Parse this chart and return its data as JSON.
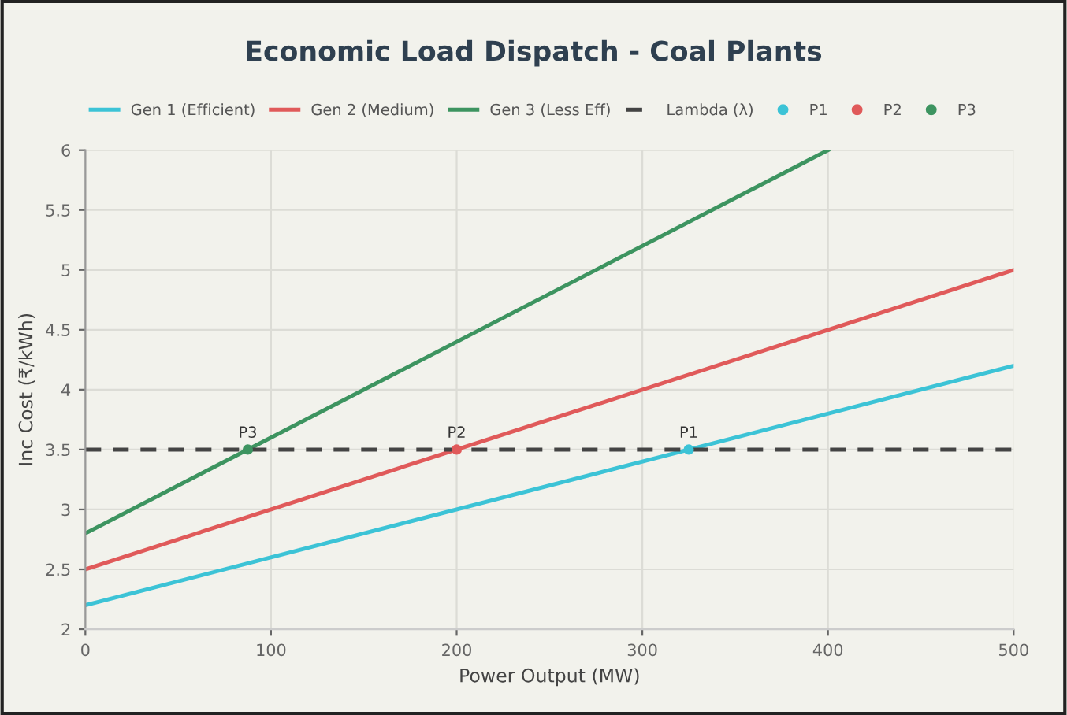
{
  "chart_data": {
    "type": "line",
    "title": "Economic Load Dispatch - Coal Plants",
    "xlabel": "Power Output (MW)",
    "ylabel": "Inc Cost (₹/kWh)",
    "series": [
      {
        "name": "Gen 1 (Efficient)",
        "color": "#3cc3d6",
        "x": [
          0,
          500
        ],
        "values": [
          2.2,
          4.2
        ]
      },
      {
        "name": "Gen 2 (Medium)",
        "color": "#e05a5a",
        "x": [
          0,
          500
        ],
        "values": [
          2.5,
          5
        ]
      },
      {
        "name": "Gen 3 (Less Eff)",
        "color": "#3d9460",
        "x": [
          0,
          400
        ],
        "values": [
          2.8,
          6
        ]
      },
      {
        "name": "Lambda (λ)",
        "color": "#444444",
        "x": [
          0,
          500
        ],
        "values": [
          3.5,
          3.5
        ],
        "line_style": "dashed"
      },
      {
        "name": "P1",
        "type": "scatter",
        "marker": "circle",
        "color": "#3cc3d6",
        "x": [
          325
        ],
        "values": [
          3.5
        ]
      },
      {
        "name": "P2",
        "type": "scatter",
        "marker": "circle",
        "color": "#e05a5a",
        "x": [
          200
        ],
        "values": [
          3.5
        ]
      },
      {
        "name": "P3",
        "type": "scatter",
        "marker": "circle",
        "color": "#3d9460",
        "x": [
          87.5
        ],
        "values": [
          3.5
        ]
      }
    ],
    "xlim": [
      0,
      500
    ],
    "xticks": [
      0,
      100,
      200,
      300,
      400,
      500
    ],
    "ylim": [
      2,
      6
    ],
    "yticks": [
      2,
      2.5,
      3,
      3.5,
      4,
      4.5,
      5,
      5.5,
      6
    ],
    "grid": true,
    "legend": "top",
    "line_style": "solid",
    "marker": "none"
  }
}
